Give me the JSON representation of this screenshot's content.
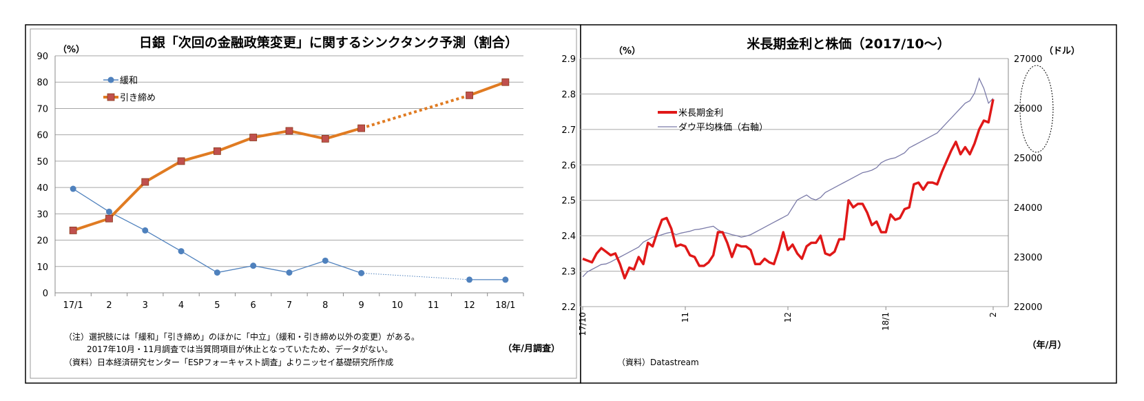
{
  "chart_data": [
    {
      "type": "line",
      "title": "日銀「次回の金融政策変更」に関するシンクタンク予測（割合）",
      "ylabel": "（%）",
      "xlabel": "（年/月調査）",
      "categories": [
        "17/1",
        "2",
        "3",
        "4",
        "5",
        "6",
        "7",
        "8",
        "9",
        "10",
        "11",
        "12",
        "18/1"
      ],
      "ylim": [
        0,
        90
      ],
      "yticks": [
        0,
        10,
        20,
        30,
        40,
        50,
        60,
        70,
        80,
        90
      ],
      "grid": true,
      "legend": "top-left",
      "series": [
        {
          "name": "緩和",
          "color": "#4f81bd",
          "values": [
            39.5,
            30.8,
            23.7,
            15.8,
            7.7,
            10.3,
            7.7,
            12.2,
            7.5,
            null,
            null,
            5.0,
            5.0
          ]
        },
        {
          "name": "引き締め",
          "color": "#e07b22",
          "values": [
            23.7,
            28.2,
            42.1,
            50.0,
            53.8,
            59.0,
            61.5,
            58.5,
            62.5,
            null,
            null,
            75.0,
            80.0
          ]
        }
      ],
      "notes": [
        "（注）選択肢には「緩和」「引き締め」のほかに「中立」（緩和・引き締め以外の変更）がある。",
        "2017年10月・11月調査では当質問項目が休止となっていたため、データがない。",
        "（資料）日本経済研究センター「ESPフォーキャスト調査」よりニッセイ基礎研究所作成"
      ]
    },
    {
      "type": "line",
      "title": "米長期金利と株価（2017/10～）",
      "ylabel": "（%）",
      "y2label": "（ドル）",
      "xlabel": "（年/月）",
      "x_ticks": [
        "17/10",
        "11",
        "12",
        "18/1",
        "2"
      ],
      "ylim": [
        2.2,
        2.9
      ],
      "yticks": [
        2.2,
        2.3,
        2.4,
        2.5,
        2.6,
        2.7,
        2.8,
        2.9
      ],
      "y2lim": [
        22000,
        27000
      ],
      "y2ticks": [
        22000,
        23000,
        24000,
        25000,
        26000,
        27000
      ],
      "grid": true,
      "legend": "top-left",
      "source": "（資料）Datastream",
      "series": [
        {
          "name": "米長期金利",
          "axis": "left",
          "color": "#e01818",
          "values": [
            2.335,
            2.33,
            2.325,
            2.35,
            2.365,
            2.355,
            2.345,
            2.35,
            2.32,
            2.28,
            2.31,
            2.305,
            2.34,
            2.32,
            2.38,
            2.37,
            2.41,
            2.445,
            2.45,
            2.42,
            2.37,
            2.375,
            2.37,
            2.345,
            2.34,
            2.315,
            2.315,
            2.325,
            2.345,
            2.41,
            2.41,
            2.38,
            2.34,
            2.375,
            2.37,
            2.37,
            2.36,
            2.32,
            2.32,
            2.335,
            2.325,
            2.32,
            2.36,
            2.41,
            2.36,
            2.375,
            2.35,
            2.335,
            2.37,
            2.38,
            2.38,
            2.4,
            2.35,
            2.345,
            2.355,
            2.39,
            2.39,
            2.5,
            2.48,
            2.49,
            2.49,
            2.465,
            2.43,
            2.44,
            2.41,
            2.41,
            2.46,
            2.445,
            2.45,
            2.475,
            2.48,
            2.545,
            2.55,
            2.53,
            2.55,
            2.55,
            2.545,
            2.58,
            2.61,
            2.64,
            2.665,
            2.63,
            2.65,
            2.63,
            2.66,
            2.7,
            2.725,
            2.72,
            2.785
          ]
        },
        {
          "name": "ダウ平均株価（右軸）",
          "axis": "right",
          "color": "#7a7aa8",
          "values": [
            22600,
            22700,
            22750,
            22800,
            22850,
            22860,
            22900,
            22950,
            23000,
            23050,
            23100,
            23150,
            23200,
            23300,
            23350,
            23400,
            23420,
            23450,
            23480,
            23500,
            23450,
            23480,
            23500,
            23520,
            23550,
            23560,
            23580,
            23600,
            23620,
            23550,
            23500,
            23480,
            23450,
            23430,
            23400,
            23420,
            23450,
            23500,
            23550,
            23600,
            23650,
            23700,
            23750,
            23800,
            23850,
            24000,
            24150,
            24200,
            24250,
            24180,
            24150,
            24200,
            24300,
            24350,
            24400,
            24450,
            24500,
            24550,
            24600,
            24650,
            24700,
            24720,
            24750,
            24800,
            24900,
            24950,
            24980,
            25000,
            25050,
            25100,
            25200,
            25250,
            25300,
            25350,
            25400,
            25450,
            25500,
            25600,
            25700,
            25800,
            25900,
            26000,
            26100,
            26150,
            26300,
            26600,
            26400,
            26100,
            26200
          ]
        }
      ]
    }
  ]
}
